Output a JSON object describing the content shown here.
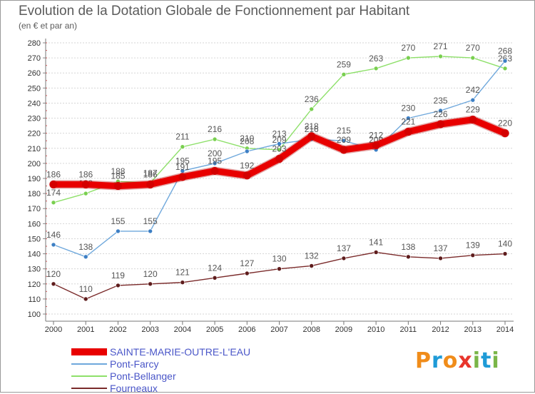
{
  "header": {
    "title": "Evolution de la Dotation Globale de Fonctionnement par Habitant",
    "subtitle": "(en € et par an)"
  },
  "logo": {
    "text": "Proxiti",
    "letters": [
      "P",
      "r",
      "o",
      "x",
      "i",
      "t",
      "i"
    ],
    "colors": [
      "#f08c1a",
      "#1f9bd7",
      "#f08c1a",
      "#e8352c",
      "#7ab648",
      "#1f9bd7",
      "#7ab648"
    ]
  },
  "chart_data": {
    "type": "line",
    "title": "Evolution de la Dotation Globale de Fonctionnement par Habitant",
    "subtitle": "(en € et par an)",
    "x": [
      2000,
      2001,
      2002,
      2003,
      2004,
      2005,
      2006,
      2007,
      2008,
      2009,
      2010,
      2011,
      2012,
      2013,
      2014
    ],
    "ylim": [
      100,
      280
    ],
    "yticks": [
      100,
      110,
      120,
      130,
      140,
      150,
      160,
      170,
      180,
      190,
      200,
      210,
      220,
      230,
      240,
      250,
      260,
      270,
      280
    ],
    "grid": "horizontal dashed",
    "legend_position": "bottom-left",
    "series": [
      {
        "name": "SAINTE-MARIE-OUTRE-L'EAU",
        "color": "#e80000",
        "values": [
          186,
          186,
          185,
          186,
          191,
          195,
          192,
          203,
          218,
          209,
          212,
          221,
          226,
          229,
          220
        ],
        "labels": [
          "186",
          "186",
          "185",
          "186",
          "191",
          "195",
          "192",
          "203",
          "218",
          "209",
          "212",
          "221",
          "226",
          "229",
          "220"
        ]
      },
      {
        "name": "Pont-Farcy",
        "color": "#6fa8dc",
        "marker": "#3d7fc4",
        "values": [
          146,
          138,
          155,
          155,
          195,
          200,
          208,
          213,
          216,
          215,
          209,
          230,
          235,
          242,
          268
        ],
        "labels": [
          "146",
          "138",
          "155",
          "155",
          "195",
          "200",
          "208",
          "213",
          "216",
          "215",
          "209",
          "230",
          "235",
          "242",
          "268"
        ]
      },
      {
        "name": "Pont-Bellanger",
        "color": "#8ee06a",
        "marker": "#79cf4f",
        "values": [
          174,
          180,
          188,
          187,
          211,
          216,
          210,
          209,
          236,
          259,
          263,
          270,
          271,
          270,
          263
        ],
        "labels": [
          "174",
          "180",
          "188",
          "187",
          "211",
          "216",
          "210",
          "209",
          "236",
          "259",
          "263",
          "270",
          "271",
          "270",
          "263"
        ]
      },
      {
        "name": "Fourneaux",
        "color": "#7a2a2a",
        "marker": "#5e1c1c",
        "values": [
          120,
          110,
          119,
          120,
          121,
          124,
          127,
          130,
          132,
          137,
          141,
          138,
          137,
          139,
          140
        ],
        "labels": [
          "120",
          "110",
          "119",
          "120",
          "121",
          "124",
          "127",
          "130",
          "132",
          "137",
          "141",
          "138",
          "137",
          "139",
          "140"
        ]
      }
    ]
  }
}
